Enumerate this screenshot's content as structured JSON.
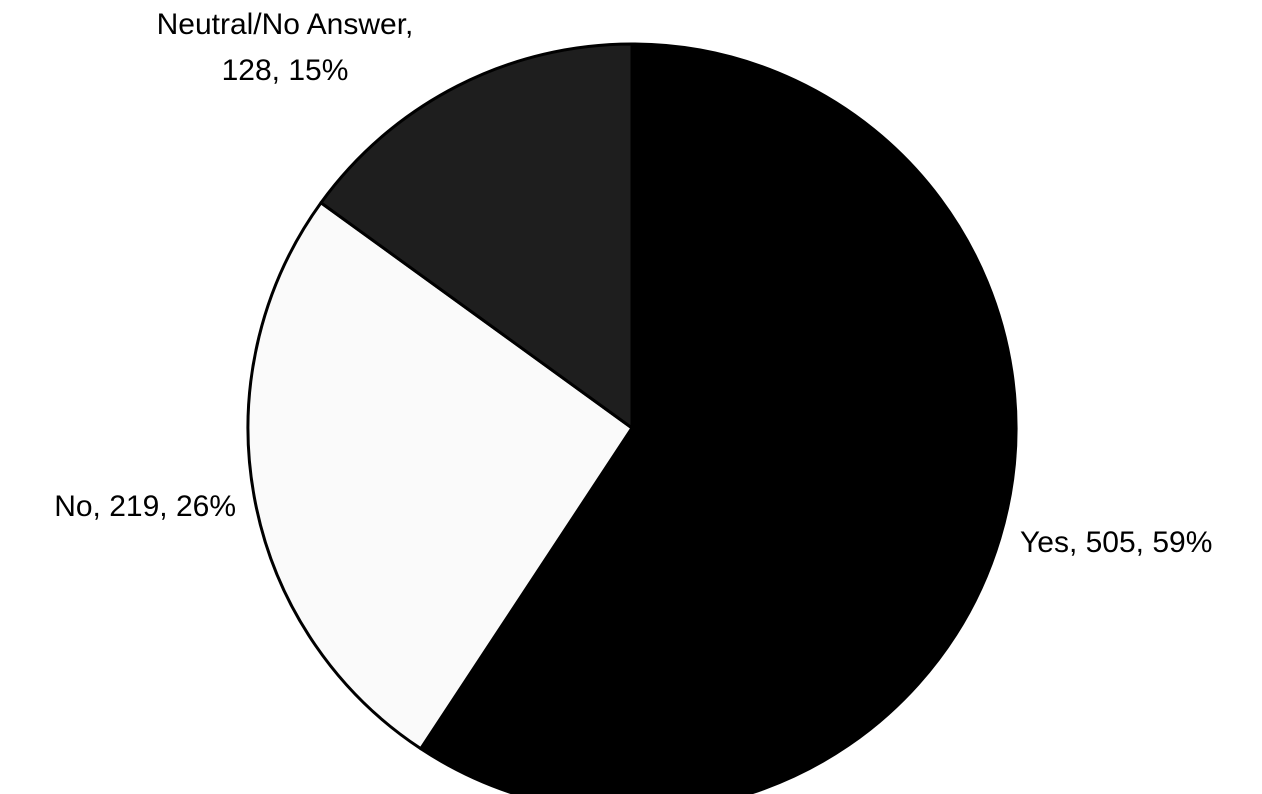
{
  "chart_data": {
    "type": "pie",
    "title": "",
    "slices": [
      {
        "category": "Yes",
        "value": 505,
        "percent": 59,
        "label_lines": [
          "Yes, 505, 59%"
        ],
        "color": "#000000"
      },
      {
        "category": "No",
        "value": 219,
        "percent": 26,
        "label_lines": [
          "No, 219, 26%"
        ],
        "color": "#fafafa"
      },
      {
        "category": "Neutral/No Answer",
        "value": 128,
        "percent": 15,
        "label_lines": [
          "Neutral/No Answer,",
          "128, 15%"
        ],
        "color": "#1e1e1e"
      }
    ],
    "start_angle_deg": 0,
    "direction": "clockwise",
    "legend": "none",
    "outline_color": "#000000"
  }
}
